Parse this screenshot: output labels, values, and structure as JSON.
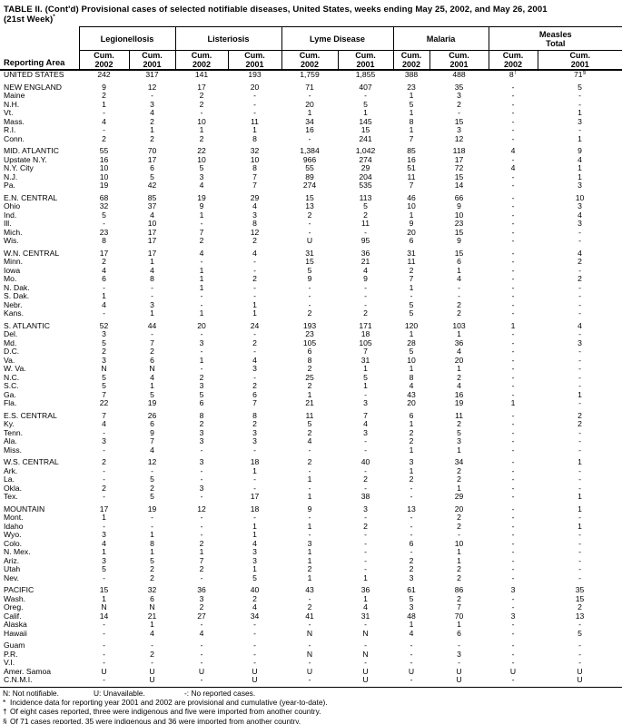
{
  "title": {
    "line1": "TABLE II. (Cont'd) Provisional cases of selected notifiable diseases, United States, weeks ending May 25, 2002, and May 26, 2001",
    "line2": "(21st Week)",
    "line2_sup": "*"
  },
  "table": {
    "corner_header": "Reporting Area",
    "cum_label": "Cum.",
    "years": [
      "2002",
      "2001"
    ],
    "groups": [
      {
        "l1": "Legionellosis",
        "l2": ""
      },
      {
        "l1": "Listeriosis",
        "l2": ""
      },
      {
        "l1": "Lyme Disease",
        "l2": ""
      },
      {
        "l1": "Malaria",
        "l2": ""
      },
      {
        "l1": "Measles",
        "l2": "Total"
      }
    ],
    "sections": [
      {
        "rows": [
          [
            "UNITED STATES",
            "242",
            "317",
            "141",
            "193",
            "1,759",
            "1,855",
            "388",
            "488",
            "8†",
            "71§"
          ]
        ]
      },
      {
        "rows": [
          [
            "NEW ENGLAND",
            "9",
            "12",
            "17",
            "20",
            "71",
            "407",
            "23",
            "35",
            "-",
            "5"
          ],
          [
            "Maine",
            "2",
            "-",
            "2",
            "-",
            "-",
            "-",
            "1",
            "3",
            "-",
            "-"
          ],
          [
            "N.H.",
            "1",
            "3",
            "2",
            "-",
            "20",
            "5",
            "5",
            "2",
            "-",
            "-"
          ],
          [
            "Vt.",
            "-",
            "4",
            "-",
            "-",
            "1",
            "1",
            "1",
            "-",
            "-",
            "1"
          ],
          [
            "Mass.",
            "4",
            "2",
            "10",
            "11",
            "34",
            "145",
            "8",
            "15",
            "-",
            "3"
          ],
          [
            "R.I.",
            "-",
            "1",
            "1",
            "1",
            "16",
            "15",
            "1",
            "3",
            "-",
            "-"
          ],
          [
            "Conn.",
            "2",
            "2",
            "2",
            "8",
            "-",
            "241",
            "7",
            "12",
            "-",
            "1"
          ]
        ]
      },
      {
        "rows": [
          [
            "MID. ATLANTIC",
            "55",
            "70",
            "22",
            "32",
            "1,384",
            "1,042",
            "85",
            "118",
            "4",
            "9"
          ],
          [
            "Upstate N.Y.",
            "16",
            "17",
            "10",
            "10",
            "966",
            "274",
            "16",
            "17",
            "-",
            "4"
          ],
          [
            "N.Y. City",
            "10",
            "6",
            "5",
            "8",
            "55",
            "29",
            "51",
            "72",
            "4",
            "1"
          ],
          [
            "N.J.",
            "10",
            "5",
            "3",
            "7",
            "89",
            "204",
            "11",
            "15",
            "-",
            "1"
          ],
          [
            "Pa.",
            "19",
            "42",
            "4",
            "7",
            "274",
            "535",
            "7",
            "14",
            "-",
            "3"
          ]
        ]
      },
      {
        "rows": [
          [
            "E.N. CENTRAL",
            "68",
            "85",
            "19",
            "29",
            "15",
            "113",
            "46",
            "66",
            "-",
            "10"
          ],
          [
            "Ohio",
            "32",
            "37",
            "9",
            "4",
            "13",
            "5",
            "10",
            "9",
            "-",
            "3"
          ],
          [
            "Ind.",
            "5",
            "4",
            "1",
            "3",
            "2",
            "2",
            "1",
            "10",
            "-",
            "4"
          ],
          [
            "Ill.",
            "-",
            "10",
            "-",
            "8",
            "-",
            "11",
            "9",
            "23",
            "-",
            "3"
          ],
          [
            "Mich.",
            "23",
            "17",
            "7",
            "12",
            "-",
            "-",
            "20",
            "15",
            "-",
            "-"
          ],
          [
            "Wis.",
            "8",
            "17",
            "2",
            "2",
            "U",
            "95",
            "6",
            "9",
            "-",
            "-"
          ]
        ]
      },
      {
        "rows": [
          [
            "W.N. CENTRAL",
            "17",
            "17",
            "4",
            "4",
            "31",
            "36",
            "31",
            "15",
            "-",
            "4"
          ],
          [
            "Minn.",
            "2",
            "1",
            "-",
            "-",
            "15",
            "21",
            "11",
            "6",
            "-",
            "2"
          ],
          [
            "Iowa",
            "4",
            "4",
            "1",
            "-",
            "5",
            "4",
            "2",
            "1",
            "-",
            "-"
          ],
          [
            "Mo.",
            "6",
            "8",
            "1",
            "2",
            "9",
            "9",
            "7",
            "4",
            "-",
            "2"
          ],
          [
            "N. Dak.",
            "-",
            "-",
            "1",
            "-",
            "-",
            "-",
            "1",
            "-",
            "-",
            "-"
          ],
          [
            "S. Dak.",
            "1",
            "-",
            "-",
            "-",
            "-",
            "-",
            "-",
            "-",
            "-",
            "-"
          ],
          [
            "Nebr.",
            "4",
            "3",
            "-",
            "1",
            "-",
            "-",
            "5",
            "2",
            "-",
            "-"
          ],
          [
            "Kans.",
            "-",
            "1",
            "1",
            "1",
            "2",
            "2",
            "5",
            "2",
            "-",
            "-"
          ]
        ]
      },
      {
        "rows": [
          [
            "S. ATLANTIC",
            "52",
            "44",
            "20",
            "24",
            "193",
            "171",
            "120",
            "103",
            "1",
            "4"
          ],
          [
            "Del.",
            "3",
            "-",
            "-",
            "-",
            "23",
            "18",
            "1",
            "1",
            "-",
            "-"
          ],
          [
            "Md.",
            "5",
            "7",
            "3",
            "2",
            "105",
            "105",
            "28",
            "36",
            "-",
            "3"
          ],
          [
            "D.C.",
            "2",
            "2",
            "-",
            "-",
            "6",
            "7",
            "5",
            "4",
            "-",
            "-"
          ],
          [
            "Va.",
            "3",
            "6",
            "1",
            "4",
            "8",
            "31",
            "10",
            "20",
            "-",
            "-"
          ],
          [
            "W. Va.",
            "N",
            "N",
            "-",
            "3",
            "2",
            "1",
            "1",
            "1",
            "-",
            "-"
          ],
          [
            "N.C.",
            "5",
            "4",
            "2",
            "-",
            "25",
            "5",
            "8",
            "2",
            "-",
            "-"
          ],
          [
            "S.C.",
            "5",
            "1",
            "3",
            "2",
            "2",
            "1",
            "4",
            "4",
            "-",
            "-"
          ],
          [
            "Ga.",
            "7",
            "5",
            "5",
            "6",
            "1",
            "-",
            "43",
            "16",
            "-",
            "1"
          ],
          [
            "Fla.",
            "22",
            "19",
            "6",
            "7",
            "21",
            "3",
            "20",
            "19",
            "1",
            "-"
          ]
        ]
      },
      {
        "rows": [
          [
            "E.S. CENTRAL",
            "7",
            "26",
            "8",
            "8",
            "11",
            "7",
            "6",
            "11",
            "-",
            "2"
          ],
          [
            "Ky.",
            "4",
            "6",
            "2",
            "2",
            "5",
            "4",
            "1",
            "2",
            "-",
            "2"
          ],
          [
            "Tenn.",
            "-",
            "9",
            "3",
            "3",
            "2",
            "3",
            "2",
            "5",
            "-",
            "-"
          ],
          [
            "Ala.",
            "3",
            "7",
            "3",
            "3",
            "4",
            "-",
            "2",
            "3",
            "-",
            "-"
          ],
          [
            "Miss.",
            "-",
            "4",
            "-",
            "-",
            "-",
            "-",
            "1",
            "1",
            "-",
            "-"
          ]
        ]
      },
      {
        "rows": [
          [
            "W.S. CENTRAL",
            "2",
            "12",
            "3",
            "18",
            "2",
            "40",
            "3",
            "34",
            "-",
            "1"
          ],
          [
            "Ark.",
            "-",
            "-",
            "-",
            "1",
            "-",
            "-",
            "1",
            "2",
            "-",
            "-"
          ],
          [
            "La.",
            "-",
            "5",
            "-",
            "-",
            "1",
            "2",
            "2",
            "2",
            "-",
            "-"
          ],
          [
            "Okla.",
            "2",
            "2",
            "3",
            "-",
            "-",
            "-",
            "-",
            "1",
            "-",
            "-"
          ],
          [
            "Tex.",
            "-",
            "5",
            "-",
            "17",
            "1",
            "38",
            "-",
            "29",
            "-",
            "1"
          ]
        ]
      },
      {
        "rows": [
          [
            "MOUNTAIN",
            "17",
            "19",
            "12",
            "18",
            "9",
            "3",
            "13",
            "20",
            "-",
            "1"
          ],
          [
            "Mont.",
            "1",
            "-",
            "-",
            "-",
            "-",
            "-",
            "-",
            "2",
            "-",
            "-"
          ],
          [
            "Idaho",
            "-",
            "-",
            "-",
            "1",
            "1",
            "2",
            "-",
            "2",
            "-",
            "1"
          ],
          [
            "Wyo.",
            "3",
            "1",
            "-",
            "1",
            "-",
            "-",
            "-",
            "-",
            "-",
            "-"
          ],
          [
            "Colo.",
            "4",
            "8",
            "2",
            "4",
            "3",
            "-",
            "6",
            "10",
            "-",
            "-"
          ],
          [
            "N. Mex.",
            "1",
            "1",
            "1",
            "3",
            "1",
            "-",
            "-",
            "1",
            "-",
            "-"
          ],
          [
            "Ariz.",
            "3",
            "5",
            "7",
            "3",
            "1",
            "-",
            "2",
            "1",
            "-",
            "-"
          ],
          [
            "Utah",
            "5",
            "2",
            "2",
            "1",
            "2",
            "-",
            "2",
            "2",
            "-",
            "-"
          ],
          [
            "Nev.",
            "-",
            "2",
            "-",
            "5",
            "1",
            "1",
            "3",
            "2",
            "-",
            "-"
          ]
        ]
      },
      {
        "rows": [
          [
            "PACIFIC",
            "15",
            "32",
            "36",
            "40",
            "43",
            "36",
            "61",
            "86",
            "3",
            "35"
          ],
          [
            "Wash.",
            "1",
            "6",
            "3",
            "2",
            "-",
            "1",
            "5",
            "2",
            "-",
            "15"
          ],
          [
            "Oreg.",
            "N",
            "N",
            "2",
            "4",
            "2",
            "4",
            "3",
            "7",
            "-",
            "2"
          ],
          [
            "Calif.",
            "14",
            "21",
            "27",
            "34",
            "41",
            "31",
            "48",
            "70",
            "3",
            "13"
          ],
          [
            "Alaska",
            "-",
            "1",
            "-",
            "-",
            "-",
            "-",
            "1",
            "1",
            "-",
            "-"
          ],
          [
            "Hawaii",
            "-",
            "4",
            "4",
            "-",
            "N",
            "N",
            "4",
            "6",
            "-",
            "5"
          ]
        ]
      },
      {
        "rows": [
          [
            "Guam",
            "-",
            "-",
            "-",
            "-",
            "-",
            "-",
            "-",
            "-",
            "-",
            "-"
          ],
          [
            "P.R.",
            "-",
            "2",
            "-",
            "-",
            "N",
            "N",
            "-",
            "3",
            "-",
            "-"
          ],
          [
            "V.I.",
            "-",
            "-",
            "-",
            "-",
            "-",
            "-",
            "-",
            "-",
            "-",
            "-"
          ],
          [
            "Amer. Samoa",
            "U",
            "U",
            "U",
            "U",
            "U",
            "U",
            "U",
            "U",
            "U",
            "U"
          ],
          [
            "C.N.M.I.",
            "-",
            "U",
            "-",
            "U",
            "-",
            "U",
            "-",
            "U",
            "-",
            "U"
          ]
        ]
      }
    ]
  },
  "legend": {
    "n": "N: Not notifiable.",
    "u": "U: Unavailable.",
    "dash": "-: No reported cases."
  },
  "footnotes": [
    {
      "sym": "*",
      "text": "Incidence data for reporting year 2001 and 2002 are provisional and cumulative (year-to-date)."
    },
    {
      "sym": "†",
      "text": "Of eight cases reported, three were indigenous and five were imported from another country."
    },
    {
      "sym": "§",
      "text": "Of 71 cases reported, 35 were indigenous and 36 were imported from another country."
    }
  ]
}
